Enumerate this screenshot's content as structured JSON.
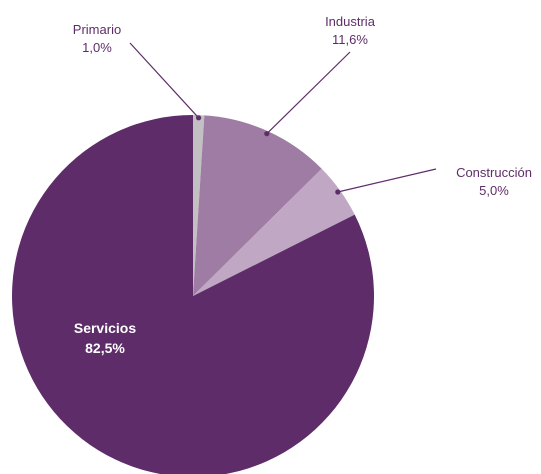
{
  "chart_data": {
    "type": "pie",
    "title": "",
    "start_angle_deg": 0,
    "direction": "clockwise",
    "slices": [
      {
        "name": "Primario",
        "value": 1.0,
        "value_label": "1,0%",
        "color": "#c2c0c2",
        "label_color": "#5e2d69",
        "label_placement": "outside-top-left"
      },
      {
        "name": "Industria",
        "value": 11.6,
        "value_label": "11,6%",
        "color": "#9f7ca3",
        "label_color": "#5e2d69",
        "label_placement": "outside-top-right"
      },
      {
        "name": "Construcción",
        "value": 5.0,
        "value_label": "5,0%",
        "color": "#c0a7c4",
        "label_color": "#5e2d69",
        "label_placement": "outside-right"
      },
      {
        "name": "Servicios",
        "value": 82.5,
        "value_label": "82,5%",
        "color": "#5e2d69",
        "label_color": "#ffffff",
        "label_placement": "inside"
      }
    ]
  }
}
